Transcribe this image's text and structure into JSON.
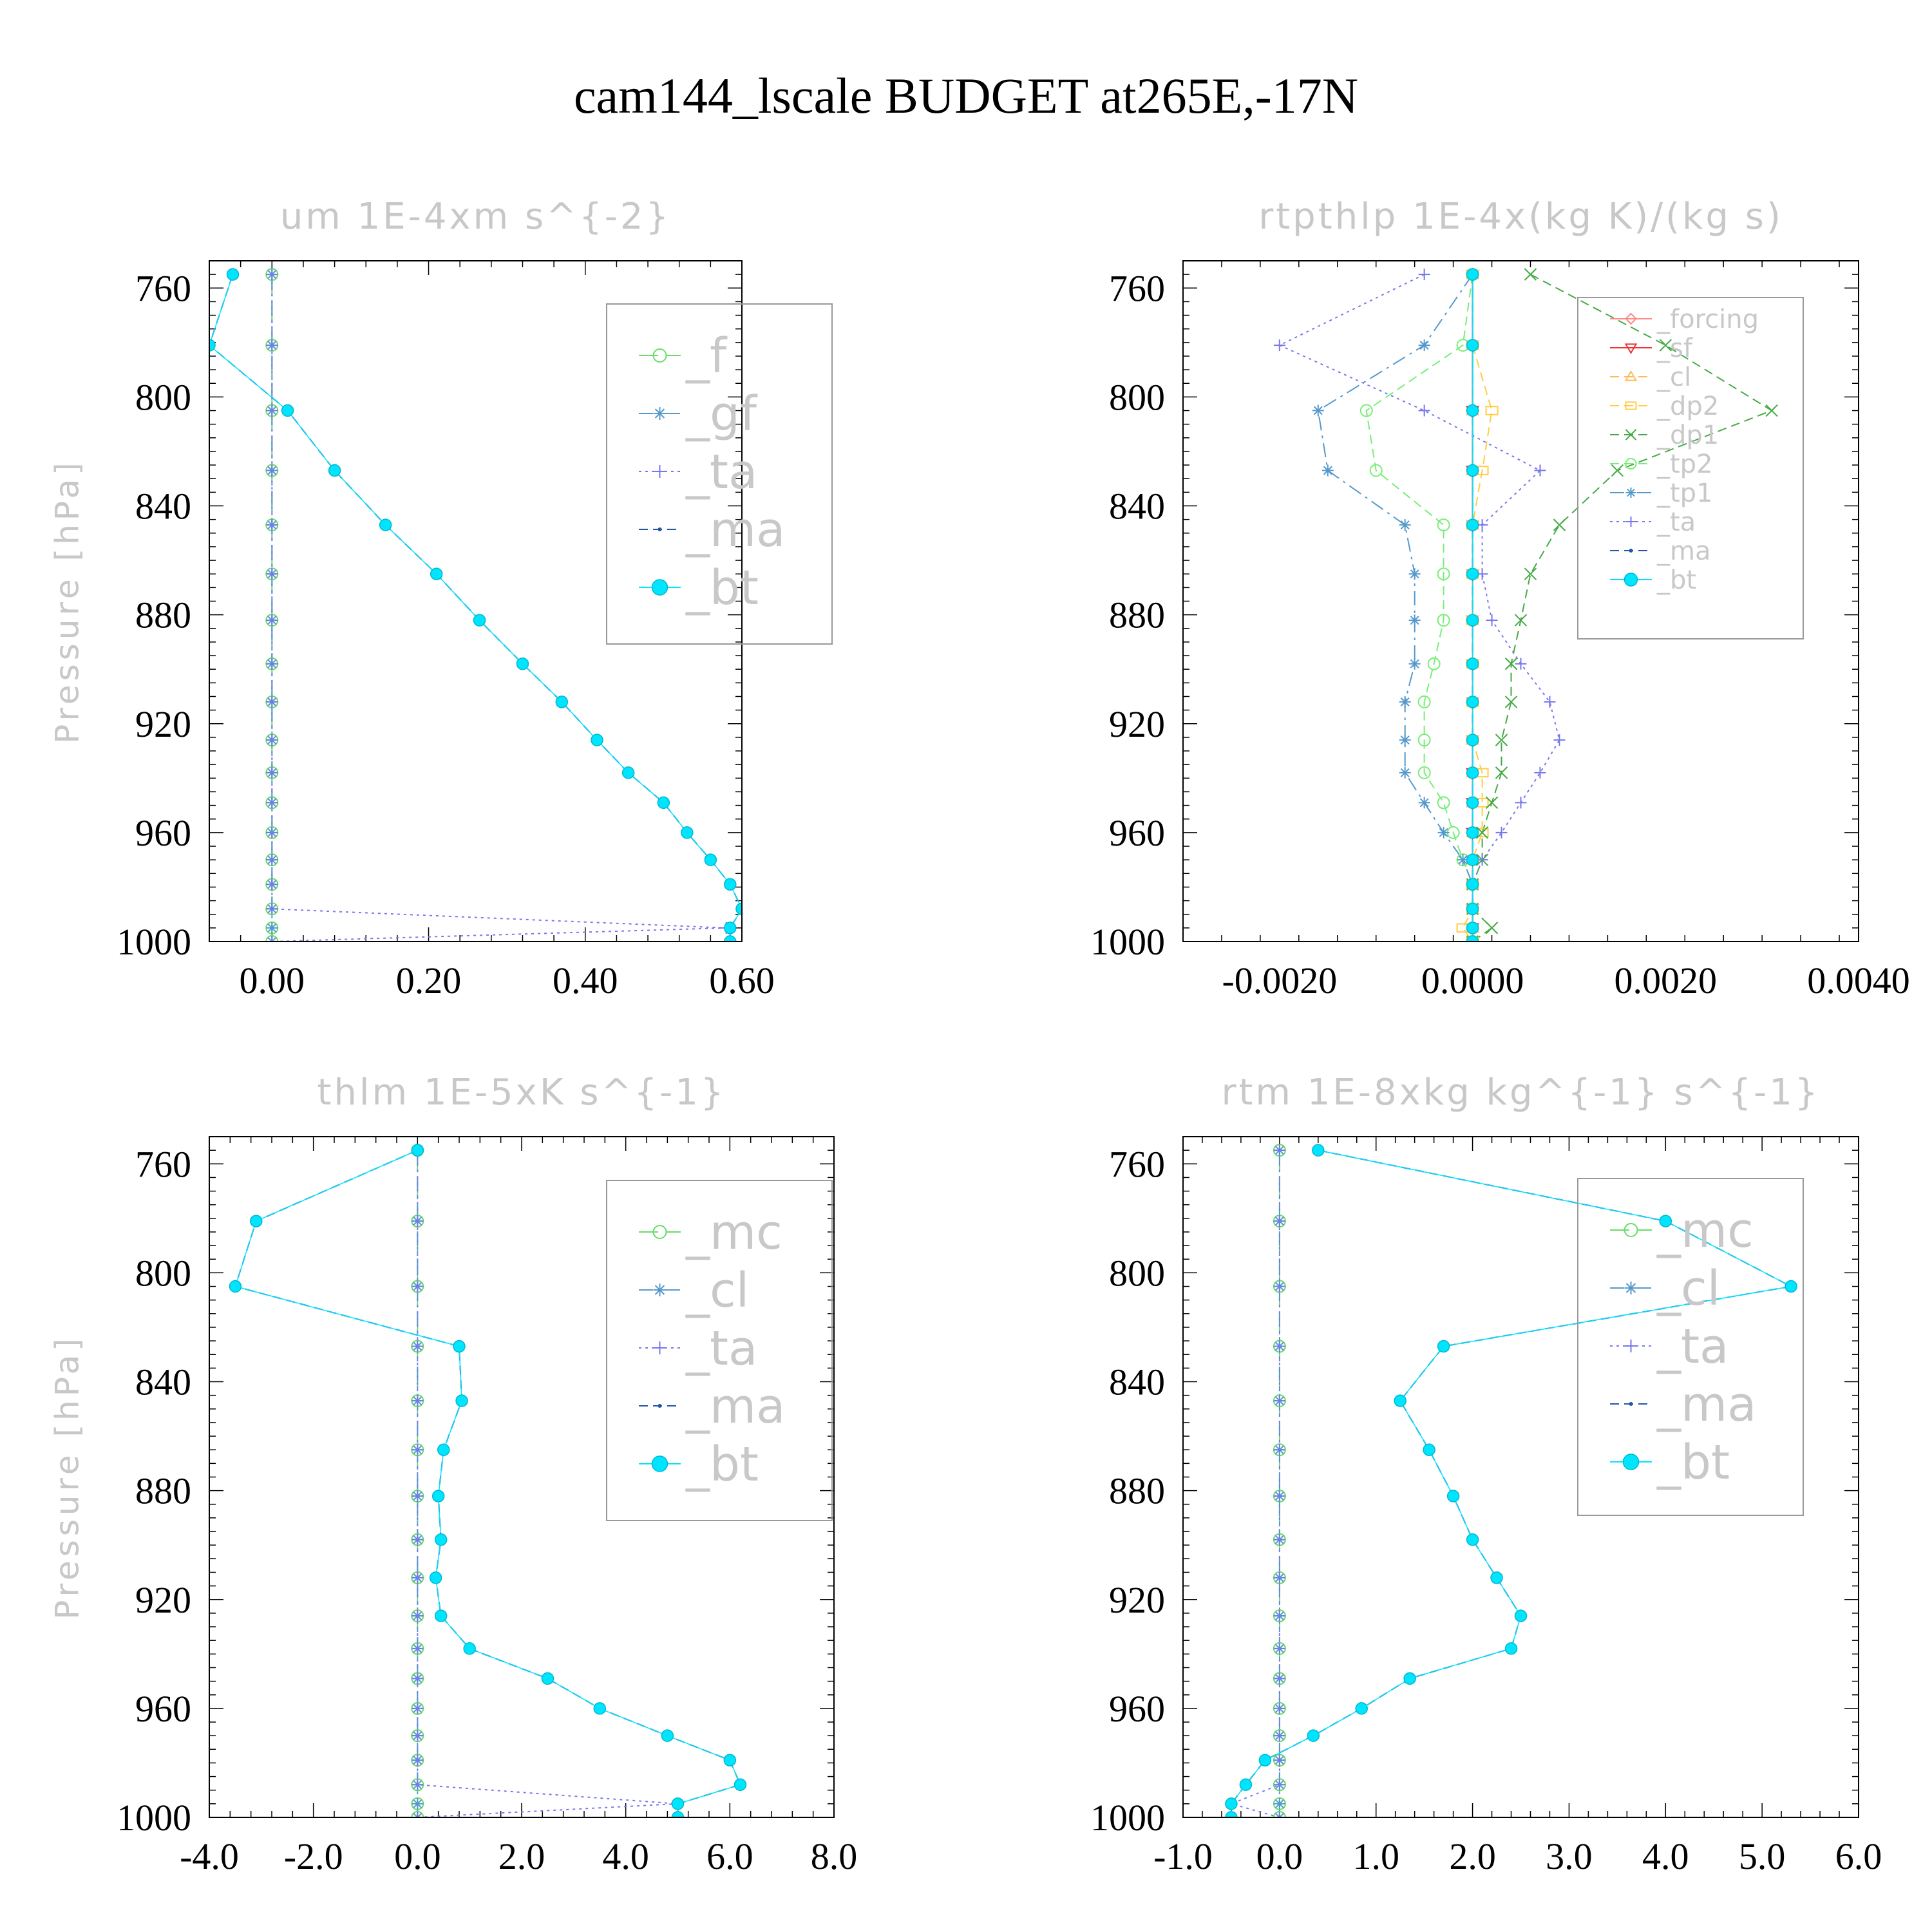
{
  "title": "cam144_lscale  BUDGET at265E,-17N",
  "ylabel": "Pressure [hPa]",
  "chart_data": [
    {
      "type": "line",
      "title": "um   1E-4xm s^{-2}",
      "ylabel": "Pressure [hPa]",
      "xlim": [
        -0.08,
        0.6
      ],
      "ylim": [
        1000,
        750
      ],
      "xticks": [
        0.0,
        0.2,
        0.4,
        0.6
      ],
      "xtick_labels": [
        "0.00",
        "0.20",
        "0.40",
        "0.60"
      ],
      "yticks": [
        760,
        800,
        840,
        880,
        920,
        960,
        1000
      ],
      "ytick_labels": [
        "760",
        "800",
        "840",
        "880",
        "920",
        "960",
        "1000"
      ],
      "legend_pos": "top-right",
      "legend_font": "large",
      "grid": false,
      "y": [
        755,
        781,
        805,
        827,
        847,
        865,
        882,
        898,
        912,
        926,
        938,
        949,
        960,
        970,
        979,
        988,
        995,
        1000
      ],
      "series": [
        {
          "name": "_f",
          "color": "#66dd66",
          "marker": "circle",
          "dash": "long",
          "values": [
            0,
            0,
            0,
            0,
            0,
            0,
            0,
            0,
            0,
            0,
            0,
            0,
            0,
            0,
            0,
            0,
            0,
            0
          ]
        },
        {
          "name": "_gf",
          "color": "#5599cc",
          "marker": "asterisk",
          "dash": "dashdot",
          "values": [
            0,
            0,
            0,
            0,
            0,
            0,
            0,
            0,
            0,
            0,
            0,
            0,
            0,
            0,
            0,
            0,
            0,
            0
          ]
        },
        {
          "name": "_ta",
          "color": "#7777ee",
          "marker": "plus",
          "dash": "dotted",
          "values": [
            0,
            0,
            0,
            0,
            0,
            0,
            0,
            0,
            0,
            0,
            0,
            0,
            0,
            0,
            0,
            0,
            0.58,
            0
          ]
        },
        {
          "name": "_ma",
          "color": "#2255aa",
          "marker": "dot",
          "dash": "dashed",
          "values": [
            -0.05,
            -0.08,
            0.02,
            0.08,
            0.145,
            0.21,
            0.265,
            0.32,
            0.37,
            0.415,
            0.455,
            0.5,
            0.53,
            0.56,
            0.585,
            0.6,
            0.585,
            0.585
          ]
        },
        {
          "name": "_bt",
          "color": "#00e5ff",
          "marker": "filled-circle",
          "dash": "solid",
          "values": [
            -0.05,
            -0.08,
            0.02,
            0.08,
            0.145,
            0.21,
            0.265,
            0.32,
            0.37,
            0.415,
            0.455,
            0.5,
            0.53,
            0.56,
            0.585,
            0.6,
            0.585,
            0.585
          ]
        }
      ]
    },
    {
      "type": "line",
      "title": "rtpthlp   1E-4x(kg K)/(kg s)",
      "ylabel": "Pressure [hPa]",
      "xlim": [
        -0.003,
        0.004
      ],
      "ylim": [
        1000,
        750
      ],
      "xticks": [
        -0.002,
        0.0,
        0.002,
        0.004
      ],
      "xtick_labels": [
        "-0.0020",
        "0.0000",
        "0.0020",
        "0.0040"
      ],
      "yticks": [
        760,
        800,
        840,
        880,
        920,
        960,
        1000
      ],
      "ytick_labels": [
        "760",
        "800",
        "840",
        "880",
        "920",
        "960",
        "1000"
      ],
      "legend_pos": "top-right",
      "legend_font": "small",
      "grid": false,
      "y": [
        755,
        781,
        805,
        827,
        847,
        865,
        882,
        898,
        912,
        926,
        938,
        949,
        960,
        970,
        979,
        988,
        995,
        1000
      ],
      "series": [
        {
          "name": "_forcing",
          "color": "#ff8888",
          "marker": "diamond",
          "dash": "solid",
          "values": [
            0,
            0,
            0,
            0,
            0,
            0,
            0,
            0,
            0,
            0,
            0,
            0,
            0,
            0,
            0,
            0,
            0,
            0
          ]
        },
        {
          "name": "_sf",
          "color": "#ee3333",
          "marker": "triangle-down",
          "dash": "solid",
          "values": [
            0,
            0,
            0,
            0,
            0,
            0,
            0,
            0,
            0,
            0,
            0,
            0,
            0,
            0,
            0,
            0,
            0,
            0
          ]
        },
        {
          "name": "_cl",
          "color": "#ffbb55",
          "marker": "triangle-up",
          "dash": "dashed",
          "values": [
            0,
            0,
            0,
            0,
            0,
            0,
            0,
            0,
            0,
            0,
            0,
            0,
            0,
            0,
            0,
            0,
            0,
            0
          ]
        },
        {
          "name": "_dp2",
          "color": "#ffcc44",
          "marker": "square",
          "dash": "dashed",
          "values": [
            0,
            0,
            0.0002,
            0.0001,
            0,
            0,
            0,
            0,
            0,
            0,
            0.0001,
            0.0001,
            0.0001,
            0,
            0,
            0,
            -0.0001,
            0
          ]
        },
        {
          "name": "_dp1",
          "color": "#44aa44",
          "marker": "x",
          "dash": "dashed",
          "values": [
            0.0006,
            0.002,
            0.0031,
            0.0015,
            0.0009,
            0.0006,
            0.0005,
            0.0004,
            0.0004,
            0.0003,
            0.0003,
            0.0002,
            0.0001,
            0.0001,
            0,
            0,
            0.0002,
            0
          ]
        },
        {
          "name": "_tp2",
          "color": "#77ee77",
          "marker": "circle",
          "dash": "dashed",
          "values": [
            0,
            -0.0001,
            -0.0011,
            -0.001,
            -0.0003,
            -0.0003,
            -0.0003,
            -0.0004,
            -0.0005,
            -0.0005,
            -0.0005,
            -0.0003,
            -0.0002,
            -0.0001,
            0,
            0,
            0,
            0
          ]
        },
        {
          "name": "_tp1",
          "color": "#5599cc",
          "marker": "asterisk",
          "dash": "dashdot",
          "values": [
            0,
            -0.0005,
            -0.0016,
            -0.0015,
            -0.0007,
            -0.0006,
            -0.0006,
            -0.0006,
            -0.0007,
            -0.0007,
            -0.0007,
            -0.0005,
            -0.0003,
            -0.0001,
            0,
            0,
            0,
            0
          ]
        },
        {
          "name": "_ta",
          "color": "#7777ee",
          "marker": "plus",
          "dash": "dotted",
          "values": [
            -0.0005,
            -0.002,
            -0.0005,
            0.0007,
            0.0001,
            0.0001,
            0.0002,
            0.0005,
            0.0008,
            0.0009,
            0.0007,
            0.0005,
            0.0003,
            0.0001,
            0,
            0,
            0,
            0
          ]
        },
        {
          "name": "_ma",
          "color": "#2255aa",
          "marker": "dot",
          "dash": "dashed",
          "values": [
            0,
            0,
            0,
            0,
            0,
            0,
            0,
            0,
            0,
            0,
            0,
            0,
            0,
            0,
            0,
            0,
            0,
            0
          ]
        },
        {
          "name": "_bt",
          "color": "#00e5ff",
          "marker": "filled-circle",
          "dash": "solid",
          "values": [
            0,
            0,
            0,
            0,
            0,
            0,
            0,
            0,
            0,
            0,
            0,
            0,
            0,
            0,
            0,
            0,
            0,
            0
          ]
        }
      ]
    },
    {
      "type": "line",
      "title": "thlm   1E-5xK s^{-1}",
      "ylabel": "Pressure [hPa]",
      "xlim": [
        -4.0,
        8.0
      ],
      "ylim": [
        1000,
        750
      ],
      "xticks": [
        -4.0,
        -2.0,
        0.0,
        2.0,
        4.0,
        6.0,
        8.0
      ],
      "xtick_labels": [
        "-4.0",
        "-2.0",
        "0.0",
        "2.0",
        "4.0",
        "6.0",
        "8.0"
      ],
      "yticks": [
        760,
        800,
        840,
        880,
        920,
        960,
        1000
      ],
      "ytick_labels": [
        "760",
        "800",
        "840",
        "880",
        "920",
        "960",
        "1000"
      ],
      "legend_pos": "top-right",
      "legend_font": "large",
      "grid": false,
      "y": [
        755,
        781,
        805,
        827,
        847,
        865,
        882,
        898,
        912,
        926,
        938,
        949,
        960,
        970,
        979,
        988,
        995,
        1000
      ],
      "series": [
        {
          "name": "_mc",
          "color": "#66dd66",
          "marker": "circle",
          "dash": "long",
          "values": [
            0,
            0,
            0,
            0,
            0,
            0,
            0,
            0,
            0,
            0,
            0,
            0,
            0,
            0,
            0,
            0,
            0,
            0
          ]
        },
        {
          "name": "_cl",
          "color": "#5599cc",
          "marker": "asterisk",
          "dash": "dashdot",
          "values": [
            0,
            0,
            0,
            0,
            0,
            0,
            0,
            0,
            0,
            0,
            0,
            0,
            0,
            0,
            0,
            0,
            0,
            0
          ]
        },
        {
          "name": "_ta",
          "color": "#7777ee",
          "marker": "plus",
          "dash": "dotted",
          "values": [
            0,
            0,
            0,
            0,
            0,
            0,
            0,
            0,
            0,
            0,
            0,
            0,
            0,
            0,
            0,
            0,
            5.0,
            0
          ]
        },
        {
          "name": "_ma",
          "color": "#2255aa",
          "marker": "dot",
          "dash": "dashed",
          "values": [
            0,
            -3.1,
            -3.5,
            0.8,
            0.85,
            0.5,
            0.4,
            0.45,
            0.35,
            0.45,
            1.0,
            2.5,
            3.5,
            4.8,
            6.0,
            6.2,
            5.0,
            5.0
          ]
        },
        {
          "name": "_bt",
          "color": "#00e5ff",
          "marker": "filled-circle",
          "dash": "solid",
          "values": [
            0,
            -3.1,
            -3.5,
            0.8,
            0.85,
            0.5,
            0.4,
            0.45,
            0.35,
            0.45,
            1.0,
            2.5,
            3.5,
            4.8,
            6.0,
            6.2,
            5.0,
            5.0
          ]
        }
      ]
    },
    {
      "type": "line",
      "title": "rtm   1E-8xkg kg^{-1} s^{-1}",
      "ylabel": "Pressure [hPa]",
      "xlim": [
        -1.0,
        6.0
      ],
      "ylim": [
        1000,
        750
      ],
      "xticks": [
        -1.0,
        0.0,
        1.0,
        2.0,
        3.0,
        4.0,
        5.0,
        6.0
      ],
      "xtick_labels": [
        "-1.0",
        "0.0",
        "1.0",
        "2.0",
        "3.0",
        "4.0",
        "5.0",
        "6.0"
      ],
      "yticks": [
        760,
        800,
        840,
        880,
        920,
        960,
        1000
      ],
      "ytick_labels": [
        "760",
        "800",
        "840",
        "880",
        "920",
        "960",
        "1000"
      ],
      "legend_pos": "top-right",
      "legend_font": "large",
      "grid": false,
      "y": [
        755,
        781,
        805,
        827,
        847,
        865,
        882,
        898,
        912,
        926,
        938,
        949,
        960,
        970,
        979,
        988,
        995,
        1000
      ],
      "series": [
        {
          "name": "_mc",
          "color": "#66dd66",
          "marker": "circle",
          "dash": "long",
          "values": [
            0,
            0,
            0,
            0,
            0,
            0,
            0,
            0,
            0,
            0,
            0,
            0,
            0,
            0,
            0,
            0,
            0,
            0
          ]
        },
        {
          "name": "_cl",
          "color": "#5599cc",
          "marker": "asterisk",
          "dash": "dashdot",
          "values": [
            0,
            0,
            0,
            0,
            0,
            0,
            0,
            0,
            0,
            0,
            0,
            0,
            0,
            0,
            0,
            0,
            0,
            0
          ]
        },
        {
          "name": "_ta",
          "color": "#7777ee",
          "marker": "plus",
          "dash": "dotted",
          "values": [
            0,
            0,
            0,
            0,
            0,
            0,
            0,
            0,
            0,
            0,
            0,
            0,
            0,
            0,
            0,
            0,
            -0.5,
            0
          ]
        },
        {
          "name": "_ma",
          "color": "#2255aa",
          "marker": "dot",
          "dash": "dashed",
          "values": [
            0.4,
            4.0,
            5.3,
            1.7,
            1.25,
            1.55,
            1.8,
            2.0,
            2.25,
            2.5,
            2.4,
            1.35,
            0.85,
            0.35,
            -0.15,
            -0.35,
            -0.5,
            -0.5
          ]
        },
        {
          "name": "_bt",
          "color": "#00e5ff",
          "marker": "filled-circle",
          "dash": "solid",
          "values": [
            0.4,
            4.0,
            5.3,
            1.7,
            1.25,
            1.55,
            1.8,
            2.0,
            2.25,
            2.5,
            2.4,
            1.35,
            0.85,
            0.35,
            -0.15,
            -0.35,
            -0.5,
            -0.5
          ]
        }
      ]
    }
  ]
}
